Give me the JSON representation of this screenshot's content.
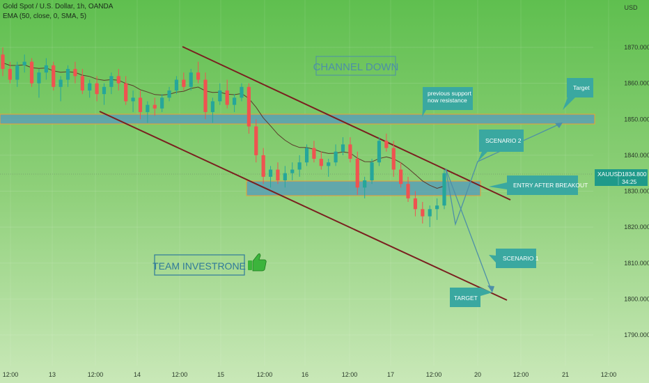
{
  "header": {
    "symbol_line": "Gold Spot / U.S. Dollar, 1h, OANDA",
    "indicator_line": "EMA (50, close, 0, SMA, 5)"
  },
  "axis": {
    "currency": "USD",
    "y_ticks": [
      "1870.000",
      "1860.000",
      "1850.000",
      "1840.000",
      "1830.000",
      "1820.000",
      "1810.000",
      "1800.000",
      "1790.000"
    ],
    "x_ticks": [
      "12:00",
      "13",
      "12:00",
      "14",
      "12:00",
      "15",
      "12:00",
      "16",
      "12:00",
      "17",
      "12:00",
      "20",
      "12:00",
      "21",
      "12:00"
    ]
  },
  "price_badge": {
    "symbol": "XAUUSD",
    "price": "1834.800",
    "countdown": "34:25"
  },
  "annotations": {
    "channel_title": "CHANNEL DOWN",
    "brand": "TEAM INVESTRONE",
    "resistance_note_line1": "previous support",
    "resistance_note_line2": "now resistance",
    "target_top": "Target",
    "scenario2": "SCENARIO 2",
    "entry": "ENTRY AFTER BREAKOUT",
    "scenario1": "SCENARIO 1",
    "target_bottom": "TARGET"
  },
  "colors": {
    "bull": "#26a69a",
    "bear": "#ef5350",
    "channel": "#7a1f1f",
    "zone_fill": "#5aa0b4",
    "zone_border": "#f0a030",
    "callout": "#3aa8a0",
    "arrow": "#4d8fa8"
  },
  "chart_data": {
    "type": "candlestick",
    "ylim": [
      1785,
      1880
    ],
    "candles": [
      [
        1868,
        1870,
        1862,
        1864
      ],
      [
        1864,
        1866,
        1860,
        1861
      ],
      [
        1861,
        1866,
        1859,
        1865
      ],
      [
        1865,
        1868,
        1863,
        1866
      ],
      [
        1866,
        1867,
        1859,
        1860
      ],
      [
        1860,
        1864,
        1856,
        1863
      ],
      [
        1863,
        1867,
        1861,
        1865
      ],
      [
        1865,
        1866,
        1858,
        1859
      ],
      [
        1859,
        1862,
        1855,
        1861
      ],
      [
        1861,
        1865,
        1859,
        1864
      ],
      [
        1864,
        1866,
        1860,
        1862
      ],
      [
        1862,
        1864,
        1857,
        1858
      ],
      [
        1858,
        1861,
        1856,
        1860
      ],
      [
        1860,
        1862,
        1855,
        1857
      ],
      [
        1857,
        1860,
        1854,
        1859
      ],
      [
        1859,
        1863,
        1857,
        1862
      ],
      [
        1862,
        1864,
        1858,
        1860
      ],
      [
        1860,
        1862,
        1854,
        1855
      ],
      [
        1855,
        1858,
        1852,
        1856
      ],
      [
        1856,
        1858,
        1850,
        1852
      ],
      [
        1852,
        1855,
        1849,
        1854
      ],
      [
        1854,
        1856,
        1851,
        1853
      ],
      [
        1853,
        1857,
        1852,
        1856
      ],
      [
        1856,
        1859,
        1855,
        1858
      ],
      [
        1858,
        1862,
        1857,
        1861
      ],
      [
        1861,
        1863,
        1858,
        1859
      ],
      [
        1859,
        1864,
        1858,
        1863
      ],
      [
        1863,
        1866,
        1860,
        1861
      ],
      [
        1861,
        1863,
        1850,
        1852
      ],
      [
        1852,
        1856,
        1849,
        1855
      ],
      [
        1855,
        1860,
        1854,
        1858
      ],
      [
        1858,
        1861,
        1853,
        1854
      ],
      [
        1854,
        1857,
        1852,
        1856
      ],
      [
        1856,
        1860,
        1855,
        1859
      ],
      [
        1859,
        1860,
        1846,
        1848
      ],
      [
        1848,
        1850,
        1838,
        1840
      ],
      [
        1840,
        1842,
        1832,
        1834
      ],
      [
        1834,
        1837,
        1831,
        1836
      ],
      [
        1836,
        1838,
        1832,
        1833
      ],
      [
        1833,
        1837,
        1831,
        1835
      ],
      [
        1835,
        1838,
        1833,
        1836
      ],
      [
        1836,
        1840,
        1834,
        1838
      ],
      [
        1838,
        1843,
        1837,
        1842
      ],
      [
        1842,
        1844,
        1838,
        1839
      ],
      [
        1839,
        1841,
        1836,
        1837
      ],
      [
        1837,
        1839,
        1834,
        1838
      ],
      [
        1838,
        1843,
        1837,
        1841
      ],
      [
        1841,
        1845,
        1840,
        1843
      ],
      [
        1843,
        1845,
        1838,
        1839
      ],
      [
        1839,
        1841,
        1829,
        1831
      ],
      [
        1831,
        1834,
        1828,
        1833
      ],
      [
        1833,
        1839,
        1832,
        1838
      ],
      [
        1838,
        1845,
        1837,
        1844
      ],
      [
        1844,
        1846,
        1841,
        1842
      ],
      [
        1842,
        1844,
        1834,
        1836
      ],
      [
        1836,
        1838,
        1831,
        1832
      ],
      [
        1832,
        1834,
        1827,
        1828
      ],
      [
        1828,
        1830,
        1823,
        1825
      ],
      [
        1825,
        1827,
        1821,
        1823
      ],
      [
        1823,
        1826,
        1820,
        1825
      ],
      [
        1825,
        1828,
        1822,
        1826
      ],
      [
        1826,
        1836,
        1825,
        1835
      ]
    ]
  }
}
